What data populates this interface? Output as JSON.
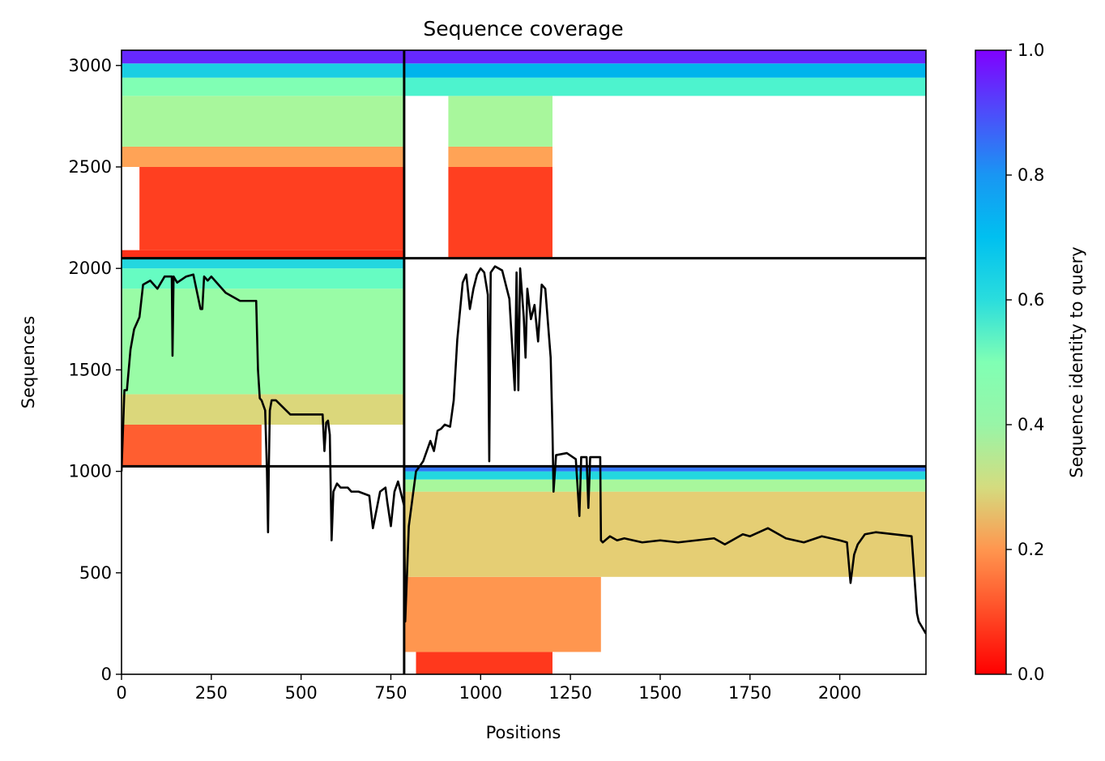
{
  "chart_data": {
    "type": "heatmap",
    "title": "Sequence coverage",
    "xlabel": "Positions",
    "ylabel": "Sequences",
    "xlim": [
      0,
      2240
    ],
    "ylim": [
      0,
      3075
    ],
    "x_ticks": [
      0,
      250,
      500,
      750,
      1000,
      1250,
      1500,
      1750,
      2000
    ],
    "y_ticks": [
      0,
      500,
      1000,
      1500,
      2000,
      2500,
      3000
    ],
    "grid": false,
    "block_boundaries": {
      "x": [
        787
      ],
      "y": [
        1025,
        2050
      ]
    },
    "colorbar": {
      "label": "Sequence identity to query",
      "range": [
        0.0,
        1.0
      ],
      "ticks": [
        0.0,
        0.2,
        0.4,
        0.6,
        0.8,
        1.0
      ],
      "tick_labels": [
        "0.0",
        "0.2",
        "0.4",
        "0.6",
        "0.8",
        "1.0"
      ],
      "colormap": "rainbow (red → orange → yellow-green → cyan → blue → violet)"
    },
    "coverage_regions": [
      {
        "x0": 0,
        "x1": 787,
        "y0": 2050,
        "y1": 2090,
        "identity": 0.06
      },
      {
        "x0": 50,
        "x1": 787,
        "y0": 2090,
        "y1": 2500,
        "identity": 0.08
      },
      {
        "x0": 0,
        "x1": 787,
        "y0": 2500,
        "y1": 2600,
        "identity": 0.22
      },
      {
        "x0": 0,
        "x1": 787,
        "y0": 2600,
        "y1": 2850,
        "identity": 0.42
      },
      {
        "x0": 0,
        "x1": 787,
        "y0": 2850,
        "y1": 2940,
        "identity": 0.5
      },
      {
        "x0": 0,
        "x1": 787,
        "y0": 2940,
        "y1": 3010,
        "identity": 0.7
      },
      {
        "x0": 0,
        "x1": 787,
        "y0": 3010,
        "y1": 3075,
        "identity": 0.95
      },
      {
        "x0": 910,
        "x1": 1200,
        "y0": 2050,
        "y1": 2500,
        "identity": 0.08
      },
      {
        "x0": 910,
        "x1": 1200,
        "y0": 2500,
        "y1": 2600,
        "identity": 0.22
      },
      {
        "x0": 910,
        "x1": 1200,
        "y0": 2600,
        "y1": 2850,
        "identity": 0.42
      },
      {
        "x0": 787,
        "x1": 2240,
        "y0": 2850,
        "y1": 2940,
        "identity": 0.6
      },
      {
        "x0": 787,
        "x1": 2240,
        "y0": 2940,
        "y1": 3010,
        "identity": 0.75
      },
      {
        "x0": 787,
        "x1": 2240,
        "y0": 3010,
        "y1": 3075,
        "identity": 0.95
      },
      {
        "x0": 0,
        "x1": 390,
        "y0": 1025,
        "y1": 1230,
        "identity": 0.12
      },
      {
        "x0": 0,
        "x1": 787,
        "y0": 1230,
        "y1": 1380,
        "identity": 0.32
      },
      {
        "x0": 0,
        "x1": 787,
        "y0": 1380,
        "y1": 1900,
        "identity": 0.45
      },
      {
        "x0": 0,
        "x1": 787,
        "y0": 1900,
        "y1": 2000,
        "identity": 0.55
      },
      {
        "x0": 0,
        "x1": 787,
        "y0": 2000,
        "y1": 2050,
        "identity": 0.68
      },
      {
        "x0": 820,
        "x1": 1200,
        "y0": 0,
        "y1": 110,
        "identity": 0.07
      },
      {
        "x0": 787,
        "x1": 1335,
        "y0": 110,
        "y1": 480,
        "identity": 0.2
      },
      {
        "x0": 787,
        "x1": 2240,
        "y0": 480,
        "y1": 900,
        "identity": 0.3
      },
      {
        "x0": 787,
        "x1": 2240,
        "y0": 900,
        "y1": 960,
        "identity": 0.42
      },
      {
        "x0": 787,
        "x1": 2240,
        "y0": 960,
        "y1": 1000,
        "identity": 0.68
      },
      {
        "x0": 787,
        "x1": 2240,
        "y0": 1000,
        "y1": 1025,
        "identity": 0.85
      }
    ],
    "series": [
      {
        "type": "line",
        "color": "#000000",
        "x": [
          0,
          8,
          15,
          25,
          35,
          50,
          60,
          80,
          100,
          120,
          140,
          142,
          145,
          155,
          180,
          200,
          220,
          225,
          230,
          240,
          250,
          260,
          290,
          300,
          330,
          375,
          380,
          385,
          390,
          400,
          405,
          408,
          410,
          413,
          418,
          430,
          470,
          500,
          560,
          565,
          570,
          575,
          580,
          585,
          590,
          600,
          610,
          630,
          640,
          660,
          690,
          700,
          720,
          735,
          740,
          750,
          760,
          770,
          787,
          790,
          800,
          820,
          840,
          860,
          870,
          880,
          890,
          900,
          915,
          925,
          935,
          950,
          960,
          970,
          980,
          990,
          1000,
          1010,
          1020,
          1024,
          1028,
          1040,
          1060,
          1080,
          1095,
          1100,
          1105,
          1110,
          1120,
          1125,
          1130,
          1140,
          1150,
          1160,
          1170,
          1180,
          1195,
          1200,
          1203,
          1210,
          1240,
          1265,
          1275,
          1280,
          1295,
          1300,
          1305,
          1320,
          1333,
          1335,
          1340,
          1360,
          1380,
          1400,
          1450,
          1500,
          1550,
          1600,
          1650,
          1680,
          1700,
          1730,
          1750,
          1800,
          1850,
          1900,
          1950,
          2000,
          2020,
          2030,
          2040,
          2050,
          2070,
          2100,
          2150,
          2200,
          2215,
          2220,
          2240
        ],
        "y": [
          1000,
          1400,
          1400,
          1600,
          1700,
          1760,
          1920,
          1940,
          1900,
          1960,
          1960,
          1570,
          1960,
          1930,
          1960,
          1970,
          1800,
          1800,
          1960,
          1940,
          1960,
          1940,
          1880,
          1870,
          1840,
          1840,
          1500,
          1360,
          1350,
          1300,
          1000,
          700,
          1000,
          1300,
          1350,
          1350,
          1280,
          1280,
          1280,
          1100,
          1240,
          1250,
          1180,
          660,
          900,
          940,
          920,
          920,
          900,
          900,
          880,
          720,
          900,
          920,
          850,
          730,
          900,
          950,
          830,
          260,
          730,
          1000,
          1050,
          1150,
          1100,
          1200,
          1210,
          1230,
          1220,
          1350,
          1650,
          1930,
          1970,
          1800,
          1900,
          1970,
          2000,
          1980,
          1870,
          1050,
          1980,
          2010,
          1990,
          1850,
          1400,
          1980,
          1400,
          2000,
          1760,
          1560,
          1900,
          1750,
          1820,
          1640,
          1920,
          1900,
          1560,
          1200,
          900,
          1080,
          1090,
          1060,
          780,
          1070,
          1070,
          820,
          1070,
          1070,
          1070,
          660,
          650,
          680,
          660,
          670,
          650,
          660,
          650,
          660,
          670,
          640,
          660,
          690,
          680,
          720,
          670,
          650,
          680,
          660,
          650,
          450,
          590,
          640,
          690,
          700,
          690,
          680,
          300,
          260,
          200
        ]
      }
    ]
  }
}
